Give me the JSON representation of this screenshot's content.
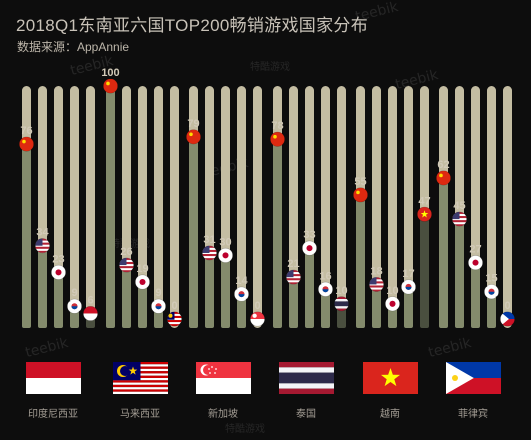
{
  "header": {
    "title": "2018Q1东南亚六国TOP200畅销游戏国家分布",
    "subtitle": "数据来源：AppAnnie"
  },
  "watermarks": [
    "teebik",
    "特酷游戏"
  ],
  "colors": {
    "background": "#0d0d0d",
    "track": "#c4bda2",
    "fill": "#848b6c",
    "fill_dark": "#4a4f3f"
  },
  "chart_data": {
    "type": "bar",
    "title": "2018Q1东南亚六国TOP200畅销游戏国家分布",
    "ylim": [
      0,
      100
    ],
    "series_order": [
      "China",
      "USA",
      "Japan",
      "Korea",
      "Local"
    ],
    "groups": [
      {
        "market": "印度尼西亚",
        "bars": [
          {
            "origin": "China",
            "value": 76,
            "flag": "cn-flag-icon"
          },
          {
            "origin": "USA",
            "value": 34,
            "flag": "us-flag-icon"
          },
          {
            "origin": "Japan",
            "value": 23,
            "flag": "jp-flag-icon"
          },
          {
            "origin": "Korea",
            "value": 9,
            "flag": "kr-flag-icon"
          },
          {
            "origin": "Local",
            "value": 6,
            "flag": "id-flag-icon"
          }
        ]
      },
      {
        "market": "马来西亚",
        "bars": [
          {
            "origin": "China",
            "value": 100,
            "flag": "cn-flag-icon"
          },
          {
            "origin": "USA",
            "value": 26,
            "flag": "us-flag-icon"
          },
          {
            "origin": "Japan",
            "value": 19,
            "flag": "jp-flag-icon"
          },
          {
            "origin": "Korea",
            "value": 9,
            "flag": "kr-flag-icon"
          },
          {
            "origin": "Local",
            "value": 0,
            "flag": "my-flag-icon"
          }
        ]
      },
      {
        "market": "新加坡",
        "bars": [
          {
            "origin": "China",
            "value": 79,
            "flag": "cn-flag-icon"
          },
          {
            "origin": "USA",
            "value": 31,
            "flag": "us-flag-icon"
          },
          {
            "origin": "Japan",
            "value": 30,
            "flag": "jp-flag-icon"
          },
          {
            "origin": "Korea",
            "value": 14,
            "flag": "kr-flag-icon"
          },
          {
            "origin": "Local",
            "value": 0,
            "flag": "sg-flag-icon"
          }
        ]
      },
      {
        "market": "泰国",
        "bars": [
          {
            "origin": "China",
            "value": 78,
            "flag": "cn-flag-icon"
          },
          {
            "origin": "USA",
            "value": 21,
            "flag": "us-flag-icon"
          },
          {
            "origin": "Japan",
            "value": 33,
            "flag": "jp-flag-icon"
          },
          {
            "origin": "Korea",
            "value": 16,
            "flag": "kr-flag-icon"
          },
          {
            "origin": "Local",
            "value": 10,
            "flag": "th-flag-icon"
          }
        ]
      },
      {
        "market": "越南",
        "bars": [
          {
            "origin": "China",
            "value": 55,
            "flag": "cn-flag-icon"
          },
          {
            "origin": "USA",
            "value": 18,
            "flag": "us-flag-icon"
          },
          {
            "origin": "Japan",
            "value": 10,
            "flag": "jp-flag-icon"
          },
          {
            "origin": "Korea",
            "value": 17,
            "flag": "kr-flag-icon"
          },
          {
            "origin": "Local",
            "value": 47,
            "flag": "vn-flag-icon"
          }
        ]
      },
      {
        "market": "菲律宾",
        "bars": [
          {
            "origin": "China",
            "value": 62,
            "flag": "cn-flag-icon"
          },
          {
            "origin": "USA",
            "value": 45,
            "flag": "us-flag-icon"
          },
          {
            "origin": "Japan",
            "value": 27,
            "flag": "jp-flag-icon"
          },
          {
            "origin": "Korea",
            "value": 15,
            "flag": "kr-flag-icon"
          },
          {
            "origin": "Local",
            "value": 0,
            "flag": "ph-flag-icon"
          }
        ]
      }
    ]
  },
  "legend_flags": [
    {
      "flag": "id-flag-icon",
      "label": "印度尼西亚"
    },
    {
      "flag": "my-flag-icon",
      "label": "马来西亚"
    },
    {
      "flag": "sg-flag-icon",
      "label": "新加坡"
    },
    {
      "flag": "th-flag-icon",
      "label": "泰国"
    },
    {
      "flag": "vn-flag-icon",
      "label": "越南"
    },
    {
      "flag": "ph-flag-icon",
      "label": "菲律宾"
    }
  ]
}
